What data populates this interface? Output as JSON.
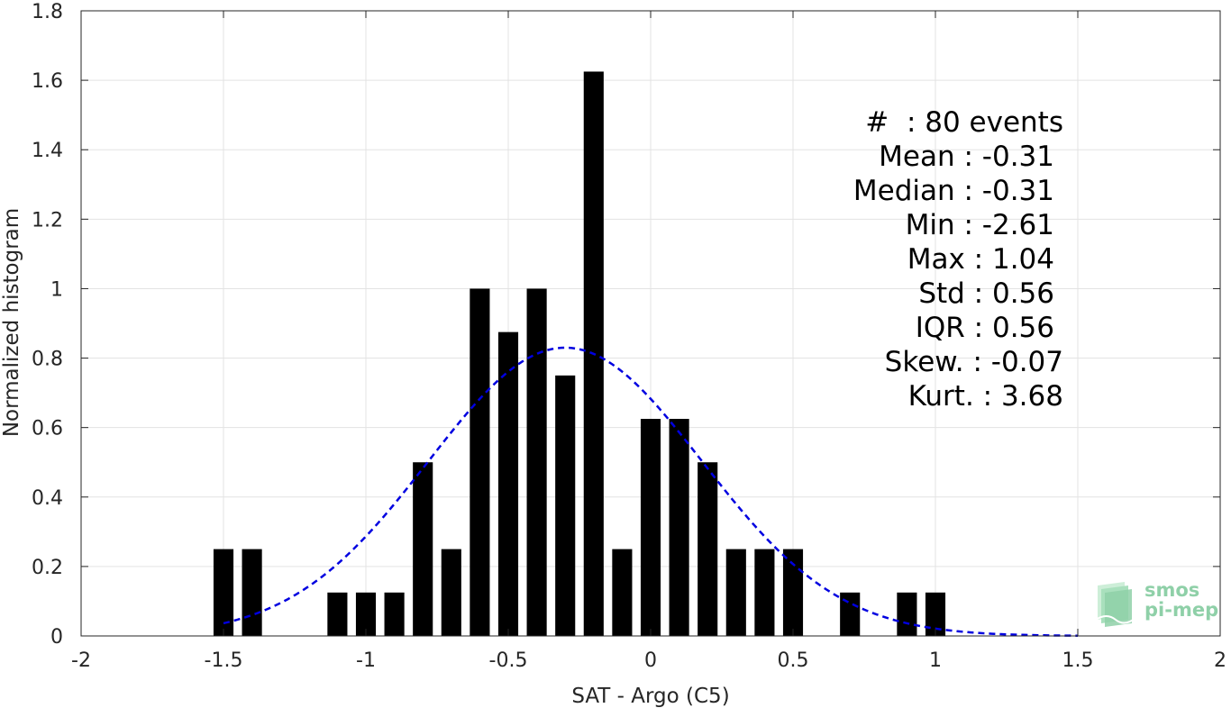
{
  "chart_data": {
    "type": "bar",
    "xlabel": "SAT - Argo (C5)",
    "ylabel": "Normalized histogram",
    "xlim": [
      -2,
      2
    ],
    "ylim": [
      0,
      1.8
    ],
    "xticks": [
      "-2",
      "-1.5",
      "-1",
      "-0.5",
      "0",
      "0.5",
      "1",
      "1.5",
      "2"
    ],
    "xtick_values": [
      -2,
      -1.5,
      -1,
      -0.5,
      0,
      0.5,
      1,
      1.5,
      2
    ],
    "yticks": [
      "0",
      "0.2",
      "0.4",
      "0.6",
      "0.8",
      "1",
      "1.2",
      "1.4",
      "1.6",
      "1.8"
    ],
    "ytick_values": [
      0,
      0.2,
      0.4,
      0.6,
      0.8,
      1,
      1.2,
      1.4,
      1.6,
      1.8
    ],
    "grid": true,
    "bin_width": 0.1,
    "bar_width": 0.07,
    "bars": {
      "x": [
        -1.5,
        -1.4,
        -1.1,
        -1.0,
        -0.9,
        -0.8,
        -0.7,
        -0.6,
        -0.5,
        -0.4,
        -0.3,
        -0.2,
        -0.1,
        0.0,
        0.1,
        0.2,
        0.3,
        0.4,
        0.5,
        0.7,
        0.9,
        1.0
      ],
      "values": [
        0.25,
        0.25,
        0.125,
        0.125,
        0.125,
        0.5,
        0.25,
        1.0,
        0.875,
        1.0,
        0.75,
        1.625,
        0.25,
        0.625,
        0.625,
        0.5,
        0.25,
        0.25,
        0.25,
        0.125,
        0.125,
        0.125
      ]
    },
    "fit_curve": {
      "style": "dashed",
      "color": "#0000e0",
      "mean": -0.3,
      "std": 0.48,
      "peak": 0.83,
      "x_range": [
        -1.5,
        1.5
      ]
    },
    "bar_color": "#000000"
  },
  "stats": {
    "events": "#  : 80 events",
    "mean": "Mean : -0.31",
    "median": "Median : -0.31",
    "min": "Min : -2.61",
    "max": "Max : 1.04",
    "std": "Std : 0.56",
    "iqr": "IQR : 0.56",
    "skew": "Skew. : -0.07",
    "kurt": "Kurt. : 3.68"
  },
  "logo": {
    "line1": "smos",
    "line2": "pi-mep",
    "color": "#8fd0a8"
  }
}
